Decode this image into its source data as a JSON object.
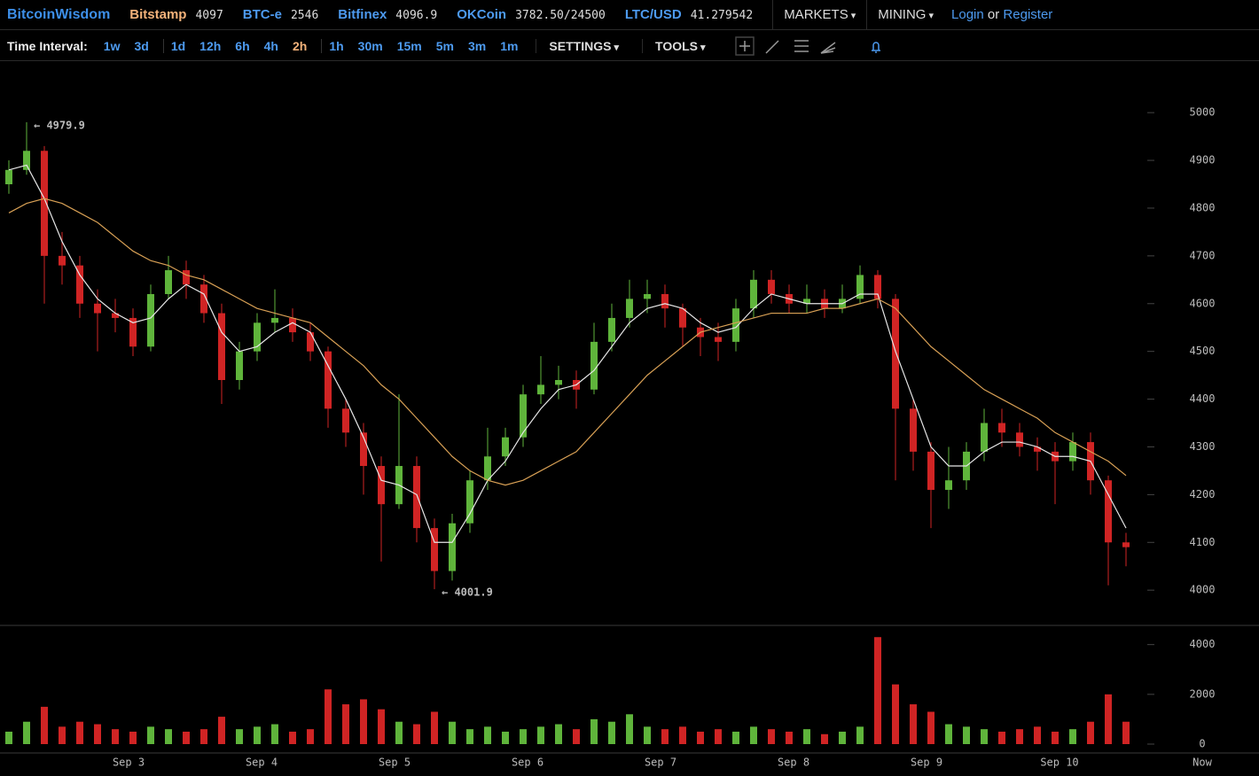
{
  "header": {
    "brand": "BitcoinWisdom",
    "tickers": [
      {
        "name": "Bitstamp",
        "price": "4097"
      },
      {
        "name": "BTC-e",
        "price": "2546"
      },
      {
        "name": "Bitfinex",
        "price": "4096.9"
      },
      {
        "name": "OKCoin",
        "price": "3782.50/24500"
      },
      {
        "name": "LTC/USD",
        "price": "41.279542"
      }
    ],
    "menus": [
      "MARKETS",
      "MINING"
    ],
    "login": "Login",
    "or": "or",
    "register": "Register"
  },
  "toolbar": {
    "label": "Time Interval:",
    "intervals": [
      "1w",
      "3d",
      "1d",
      "12h",
      "6h",
      "4h",
      "2h",
      "1h",
      "30m",
      "15m",
      "5m",
      "3m",
      "1m"
    ],
    "menus": [
      "SETTINGS",
      "TOOLS"
    ]
  },
  "chart_data": {
    "type": "candlestick",
    "up_color": "#5fb43b",
    "down_color": "#d02424",
    "open": [
      4850,
      4880,
      4920,
      4700,
      4680,
      4600,
      4580,
      4570,
      4510,
      4620,
      4670,
      4640,
      4580,
      4440,
      4500,
      4560,
      4570,
      4540,
      4500,
      4380,
      4330,
      4260,
      4180,
      4260,
      4130,
      4040,
      4140,
      4230,
      4280,
      4320,
      4410,
      4430,
      4440,
      4420,
      4520,
      4570,
      4610,
      4620,
      4590,
      4550,
      4530,
      4520,
      4590,
      4650,
      4620,
      4600,
      4610,
      4590,
      4610,
      4660,
      4610,
      4380,
      4290,
      4210,
      4230,
      4290,
      4350,
      4330,
      4300,
      4290,
      4270,
      4310,
      4230,
      4100
    ],
    "high": [
      4900,
      4979.9,
      4930,
      4750,
      4700,
      4630,
      4610,
      4590,
      4640,
      4700,
      4690,
      4660,
      4600,
      4520,
      4580,
      4630,
      4590,
      4560,
      4510,
      4400,
      4350,
      4280,
      4410,
      4280,
      4150,
      4160,
      4250,
      4340,
      4340,
      4430,
      4490,
      4470,
      4460,
      4560,
      4600,
      4650,
      4650,
      4640,
      4600,
      4570,
      4560,
      4610,
      4670,
      4670,
      4640,
      4640,
      4630,
      4640,
      4680,
      4670,
      4620,
      4400,
      4310,
      4300,
      4310,
      4380,
      4380,
      4350,
      4320,
      4310,
      4330,
      4330,
      4240,
      4120
    ],
    "low": [
      4830,
      4870,
      4600,
      4640,
      4570,
      4500,
      4540,
      4490,
      4500,
      4610,
      4610,
      4560,
      4390,
      4420,
      4480,
      4540,
      4520,
      4480,
      4340,
      4300,
      4200,
      4060,
      4170,
      4100,
      4001.9,
      4020,
      4120,
      4210,
      4260,
      4300,
      4390,
      4400,
      4380,
      4410,
      4500,
      4550,
      4580,
      4550,
      4510,
      4490,
      4480,
      4500,
      4570,
      4600,
      4580,
      4580,
      4570,
      4580,
      4600,
      4590,
      4230,
      4250,
      4130,
      4170,
      4210,
      4270,
      4300,
      4280,
      4250,
      4180,
      4250,
      4200,
      4010,
      4050
    ],
    "close": [
      4880,
      4920,
      4700,
      4680,
      4600,
      4580,
      4570,
      4510,
      4620,
      4670,
      4640,
      4580,
      4440,
      4500,
      4560,
      4570,
      4540,
      4500,
      4380,
      4330,
      4260,
      4180,
      4260,
      4130,
      4040,
      4140,
      4230,
      4280,
      4320,
      4410,
      4430,
      4440,
      4420,
      4520,
      4570,
      4610,
      4620,
      4590,
      4550,
      4530,
      4520,
      4590,
      4650,
      4620,
      4600,
      4610,
      4590,
      4610,
      4660,
      4610,
      4380,
      4290,
      4210,
      4230,
      4290,
      4350,
      4330,
      4300,
      4290,
      4270,
      4310,
      4230,
      4100,
      4090
    ],
    "ma": [
      {
        "color": "#e6e6e6",
        "values": [
          4880,
          4890,
          4820,
          4730,
          4660,
          4610,
          4580,
          4560,
          4570,
          4610,
          4640,
          4620,
          4540,
          4500,
          4510,
          4540,
          4560,
          4540,
          4470,
          4400,
          4320,
          4230,
          4220,
          4200,
          4100,
          4100,
          4160,
          4230,
          4270,
          4330,
          4380,
          4420,
          4430,
          4460,
          4510,
          4560,
          4590,
          4600,
          4590,
          4560,
          4540,
          4550,
          4590,
          4620,
          4610,
          4600,
          4600,
          4600,
          4620,
          4620,
          4500,
          4400,
          4300,
          4260,
          4260,
          4290,
          4310,
          4310,
          4300,
          4280,
          4280,
          4270,
          4200,
          4130
        ]
      },
      {
        "color": "#d8a055",
        "values": [
          4790,
          4810,
          4820,
          4810,
          4790,
          4770,
          4740,
          4710,
          4690,
          4680,
          4660,
          4650,
          4630,
          4610,
          4590,
          4580,
          4570,
          4560,
          4530,
          4500,
          4470,
          4430,
          4400,
          4360,
          4320,
          4280,
          4250,
          4230,
          4220,
          4230,
          4250,
          4270,
          4290,
          4330,
          4370,
          4410,
          4450,
          4480,
          4510,
          4540,
          4550,
          4560,
          4570,
          4580,
          4580,
          4580,
          4590,
          4590,
          4600,
          4610,
          4590,
          4550,
          4510,
          4480,
          4450,
          4420,
          4400,
          4380,
          4360,
          4330,
          4310,
          4290,
          4270,
          4240
        ]
      }
    ],
    "annotations": [
      {
        "label": "← 4979.9",
        "value": 4979.9
      },
      {
        "label": "← 4001.9",
        "value": 4001.9
      }
    ],
    "ylim": [
      3928,
      5106
    ],
    "yticks": [
      4000,
      4100,
      4200,
      4300,
      4400,
      4500,
      4600,
      4700,
      4800,
      4900,
      5000
    ],
    "volume": {
      "values": [
        500,
        900,
        1500,
        700,
        900,
        800,
        600,
        500,
        700,
        600,
        500,
        600,
        1100,
        600,
        700,
        800,
        500,
        600,
        2200,
        1600,
        1800,
        1400,
        900,
        800,
        1300,
        900,
        600,
        700,
        500,
        600,
        700,
        800,
        600,
        1000,
        900,
        1200,
        700,
        600,
        700,
        500,
        600,
        500,
        700,
        600,
        500,
        600,
        400,
        500,
        700,
        4300,
        2400,
        1600,
        1300,
        800,
        700,
        600,
        500,
        600,
        700,
        500,
        600,
        900,
        2000,
        900
      ],
      "ylim": [
        0,
        4700
      ],
      "yticks": [
        0,
        2000,
        4000
      ]
    },
    "xticks": [
      "Sep 3",
      "Sep 4",
      "Sep 5",
      "Sep 6",
      "Sep 7",
      "Sep 8",
      "Sep 9",
      "Sep 10"
    ],
    "now": "Now"
  }
}
